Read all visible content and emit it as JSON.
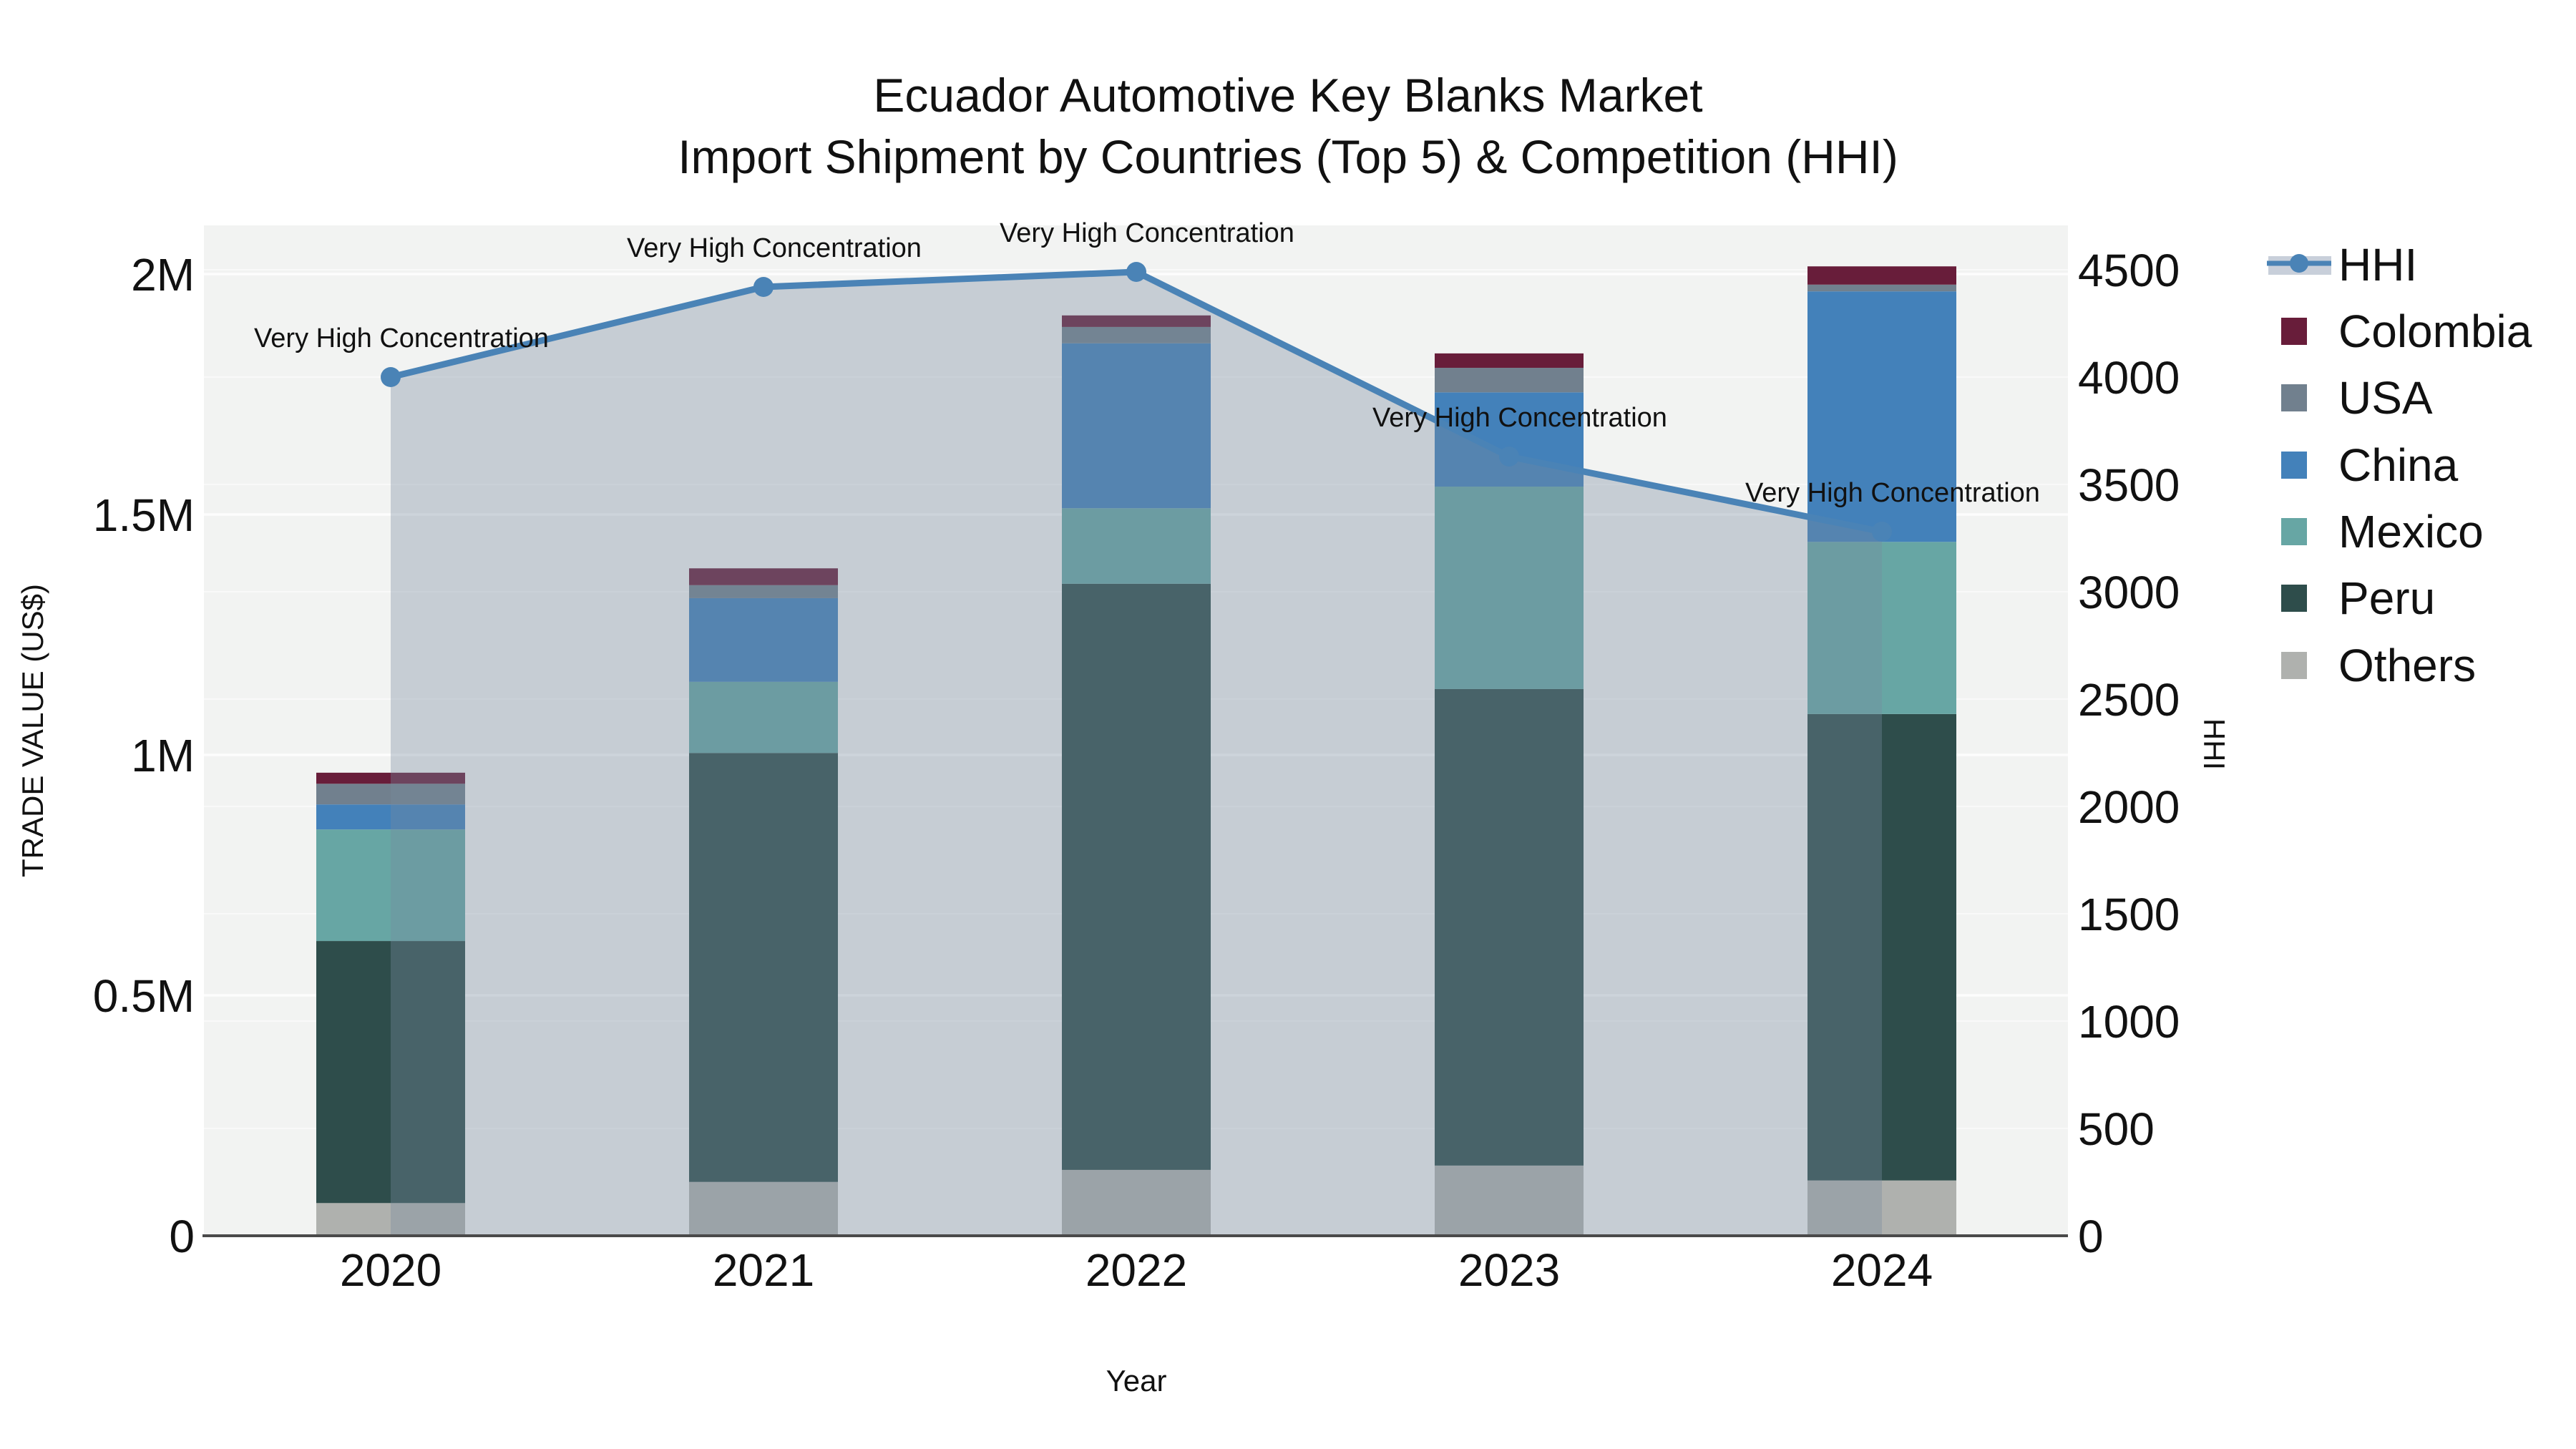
{
  "title": {
    "line1": "Ecuador Automotive Key Blanks Market",
    "line2": "Import Shipment by Countries (Top 5) & Competition (HHI)"
  },
  "axes": {
    "y1_title": "TRADE VALUE (US$)",
    "y2_title": "HHI",
    "x_title": "Year",
    "y1_tick_labels": [
      "0",
      "0.5M",
      "1M",
      "1.5M",
      "2M"
    ],
    "y1_tick_values_musd": [
      0,
      0.5,
      1.0,
      1.5,
      2.0
    ],
    "y2_tick_labels": [
      "0",
      "500",
      "1000",
      "1500",
      "2000",
      "2500",
      "3000",
      "3500",
      "4000",
      "4500"
    ],
    "y2_tick_values": [
      0,
      500,
      1000,
      1500,
      2000,
      2500,
      3000,
      3500,
      4000,
      4500
    ]
  },
  "legend": {
    "items": [
      {
        "label": "HHI",
        "type": "line"
      },
      {
        "label": "Colombia",
        "type": "swatch"
      },
      {
        "label": "USA",
        "type": "swatch"
      },
      {
        "label": "China",
        "type": "swatch"
      },
      {
        "label": "Mexico",
        "type": "swatch"
      },
      {
        "label": "Peru",
        "type": "swatch"
      },
      {
        "label": "Others",
        "type": "swatch"
      }
    ]
  },
  "annotation_text": "Very High Concentration",
  "chart_data": {
    "type": "stacked-bar + line (dual axis)",
    "title": "Ecuador Automotive Key Blanks Market — Import Shipment by Countries (Top 5) & Competition (HHI)",
    "categories": [
      "2020",
      "2021",
      "2022",
      "2023",
      "2024"
    ],
    "xlabel": "Year",
    "y1_label": "TRADE VALUE (US$)",
    "y1_unit": "million US$",
    "y1_range_musd": [
      0,
      2.1
    ],
    "y2_label": "HHI",
    "y2_range": [
      0,
      4700
    ],
    "grid": true,
    "legend_position": "right",
    "bar_stack_order_bottom_to_top": [
      "Others",
      "Peru",
      "Mexico",
      "China",
      "USA",
      "Colombia"
    ],
    "series": [
      {
        "name": "Colombia",
        "color": "#681d3a",
        "values_musd": [
          0.023,
          0.035,
          0.024,
          0.03,
          0.038
        ]
      },
      {
        "name": "USA",
        "color": "#71808e",
        "values_musd": [
          0.043,
          0.027,
          0.034,
          0.051,
          0.014
        ]
      },
      {
        "name": "China",
        "color": "#4381ba",
        "values_musd": [
          0.052,
          0.174,
          0.343,
          0.196,
          0.521
        ]
      },
      {
        "name": "Mexico",
        "color": "#67a6a4",
        "values_musd": [
          0.232,
          0.148,
          0.157,
          0.421,
          0.358
        ]
      },
      {
        "name": "Peru",
        "color": "#2e4d4b",
        "values_musd": [
          0.545,
          0.892,
          1.219,
          0.991,
          0.97
        ]
      },
      {
        "name": "Others",
        "color": "#afb1ae",
        "values_musd": [
          0.068,
          0.112,
          0.137,
          0.146,
          0.115
        ]
      }
    ],
    "bar_totals_musd": [
      0.963,
      1.388,
      1.914,
      1.835,
      2.016
    ],
    "line_series": {
      "name": "HHI",
      "color": "#4a83b6",
      "area_fill_rgba": "rgba(120,138,158,0.36)",
      "values": [
        4000,
        4420,
        4490,
        3630,
        3280
      ],
      "point_annotations": [
        "Very High Concentration",
        "Very High Concentration",
        "Very High Concentration",
        "Very High Concentration",
        "Very High Concentration"
      ]
    },
    "colors": {
      "plot_background": "#f2f3f2",
      "page_background": "#ffffff",
      "gridline": "#ffffff",
      "axis_line": "#4a4a4a",
      "text": "#111111",
      "legend_hhi_band": "#c8cfda"
    }
  }
}
